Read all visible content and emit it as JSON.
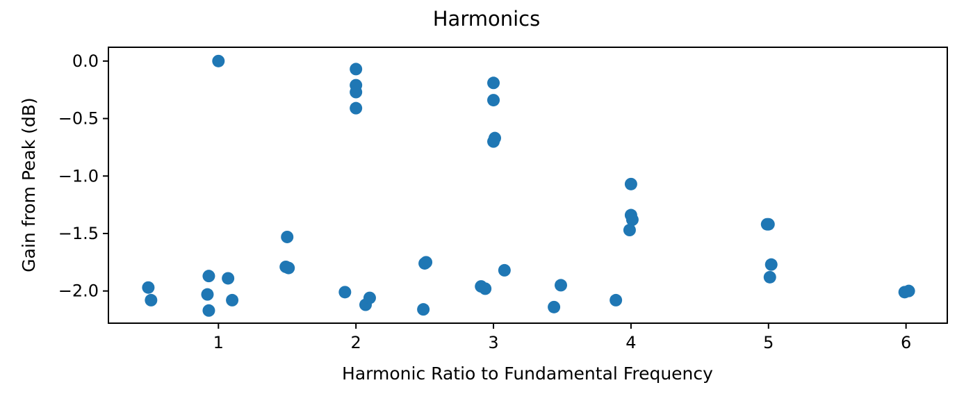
{
  "chart_data": {
    "type": "scatter",
    "title": "Harmonics",
    "xlabel": "Harmonic Ratio to Fundamental Frequency",
    "ylabel": "Gain from Peak (dB)",
    "xlim": [
      0.2,
      6.3
    ],
    "ylim": [
      -2.28,
      0.12
    ],
    "xticks": [
      1,
      2,
      3,
      4,
      5,
      6
    ],
    "xtick_labels": [
      "1",
      "2",
      "3",
      "4",
      "5",
      "6"
    ],
    "yticks": [
      0.0,
      -0.5,
      -1.0,
      -1.5,
      -2.0
    ],
    "ytick_labels": [
      "0.0",
      "−0.5",
      "−1.0",
      "−1.5",
      "−2.0"
    ],
    "grid": false,
    "marker_color": "#1f77b4",
    "series": [
      {
        "points": [
          {
            "x": 0.49,
            "y": -1.97
          },
          {
            "x": 0.51,
            "y": -2.08
          },
          {
            "x": 0.93,
            "y": -1.87
          },
          {
            "x": 0.92,
            "y": -2.03
          },
          {
            "x": 0.93,
            "y": -2.17
          },
          {
            "x": 1.0,
            "y": 0.0
          },
          {
            "x": 1.07,
            "y": -1.89
          },
          {
            "x": 1.1,
            "y": -2.08
          },
          {
            "x": 1.49,
            "y": -1.79
          },
          {
            "x": 1.51,
            "y": -1.8
          },
          {
            "x": 1.5,
            "y": -1.53
          },
          {
            "x": 1.92,
            "y": -2.01
          },
          {
            "x": 2.0,
            "y": -0.07
          },
          {
            "x": 2.0,
            "y": -0.21
          },
          {
            "x": 2.0,
            "y": -0.27
          },
          {
            "x": 2.0,
            "y": -0.41
          },
          {
            "x": 2.07,
            "y": -2.12
          },
          {
            "x": 2.1,
            "y": -2.06
          },
          {
            "x": 2.49,
            "y": -2.16
          },
          {
            "x": 2.5,
            "y": -1.76
          },
          {
            "x": 2.51,
            "y": -1.75
          },
          {
            "x": 2.91,
            "y": -1.96
          },
          {
            "x": 2.94,
            "y": -1.98
          },
          {
            "x": 3.0,
            "y": -0.19
          },
          {
            "x": 3.0,
            "y": -0.34
          },
          {
            "x": 3.01,
            "y": -0.67
          },
          {
            "x": 3.0,
            "y": -0.7
          },
          {
            "x": 3.08,
            "y": -1.82
          },
          {
            "x": 3.44,
            "y": -2.14
          },
          {
            "x": 3.49,
            "y": -1.95
          },
          {
            "x": 3.89,
            "y": -2.08
          },
          {
            "x": 4.0,
            "y": -1.07
          },
          {
            "x": 4.0,
            "y": -1.34
          },
          {
            "x": 4.01,
            "y": -1.38
          },
          {
            "x": 3.99,
            "y": -1.47
          },
          {
            "x": 4.99,
            "y": -1.42
          },
          {
            "x": 5.0,
            "y": -1.42
          },
          {
            "x": 5.02,
            "y": -1.77
          },
          {
            "x": 5.01,
            "y": -1.88
          },
          {
            "x": 5.99,
            "y": -2.01
          },
          {
            "x": 6.02,
            "y": -2.0
          }
        ]
      }
    ]
  }
}
